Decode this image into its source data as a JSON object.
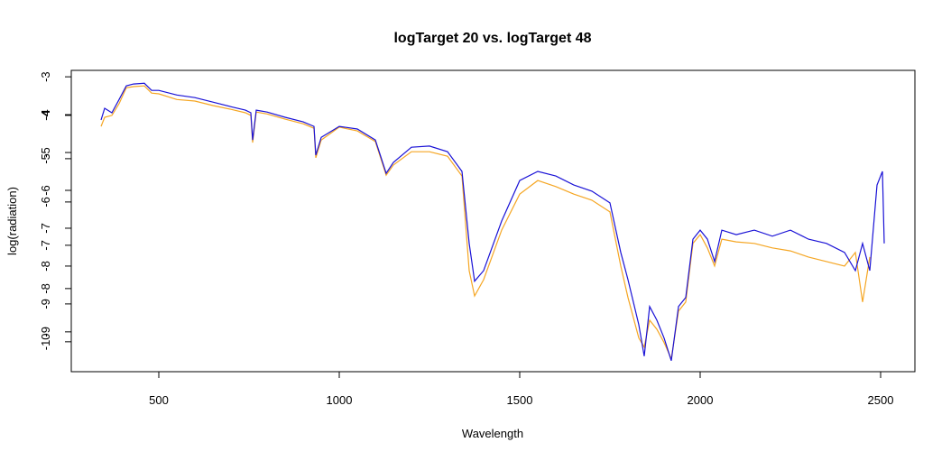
{
  "chart_data": {
    "type": "line",
    "title": "logTarget 20 vs. logTarget 48",
    "x_label": "Wavelength",
    "y_label": "log(radiation)",
    "xlim": [
      257.5,
      2595
    ],
    "xticks": [
      500,
      1000,
      1500,
      2000,
      2500
    ],
    "ylim": [
      -10.79,
      -2.83
    ],
    "yticks": [
      -3,
      -4,
      -5,
      -6,
      -7,
      -8,
      -9,
      -10
    ],
    "y2lim": [
      -9.92,
      -2.96
    ],
    "y2ticks": [
      -4,
      -5,
      -6,
      -7,
      -8,
      -9
    ],
    "series": [
      {
        "color": "#f5a623",
        "x": [
          340,
          350,
          370,
          390,
          410,
          430,
          460,
          480,
          500,
          550,
          600,
          650,
          700,
          740,
          755,
          760,
          770,
          800,
          850,
          900,
          930,
          935,
          950,
          1000,
          1050,
          1100,
          1130,
          1150,
          1200,
          1250,
          1300,
          1340,
          1360,
          1375,
          1400,
          1450,
          1500,
          1550,
          1600,
          1650,
          1700,
          1750,
          1780,
          1800,
          1830,
          1845,
          1860,
          1880,
          1900,
          1920,
          1940,
          1960,
          1980,
          2000,
          2020,
          2040,
          2060,
          2100,
          2150,
          2200,
          2250,
          2300,
          2350,
          2400,
          2430,
          2450,
          2470
        ],
        "values": [
          -4.31,
          -4.07,
          -4.02,
          -3.71,
          -3.29,
          -3.26,
          -3.24,
          -3.43,
          -3.45,
          -3.6,
          -3.64,
          -3.76,
          -3.86,
          -3.95,
          -4.02,
          -4.74,
          -3.93,
          -3.98,
          -4.12,
          -4.24,
          -4.36,
          -5.14,
          -4.67,
          -4.33,
          -4.43,
          -4.71,
          -5.6,
          -5.33,
          -4.98,
          -4.98,
          -5.1,
          -5.62,
          -8.12,
          -8.79,
          -8.36,
          -7.05,
          -6.1,
          -5.74,
          -5.9,
          -6.1,
          -6.26,
          -6.57,
          -8.0,
          -8.83,
          -9.9,
          -10.14,
          -9.43,
          -9.67,
          -10.02,
          -10.45,
          -9.19,
          -8.95,
          -7.4,
          -7.17,
          -7.52,
          -8.0,
          -7.29,
          -7.36,
          -7.4,
          -7.52,
          -7.6,
          -7.76,
          -7.88,
          -8.0,
          -7.64,
          -8.95,
          -7.76
        ]
      },
      {
        "color": "#1a12d6",
        "x": [
          340,
          350,
          370,
          390,
          410,
          430,
          460,
          480,
          500,
          550,
          600,
          650,
          700,
          740,
          755,
          760,
          770,
          800,
          850,
          900,
          930,
          935,
          950,
          1000,
          1050,
          1100,
          1130,
          1150,
          1200,
          1250,
          1300,
          1340,
          1360,
          1375,
          1400,
          1450,
          1500,
          1550,
          1600,
          1650,
          1700,
          1750,
          1780,
          1800,
          1830,
          1845,
          1860,
          1880,
          1900,
          1920,
          1940,
          1960,
          1980,
          2000,
          2020,
          2040,
          2060,
          2100,
          2150,
          2200,
          2250,
          2300,
          2350,
          2400,
          2430,
          2450,
          2470,
          2490,
          2505,
          2510
        ],
        "values": [
          -4.14,
          -3.83,
          -3.95,
          -3.6,
          -3.24,
          -3.19,
          -3.17,
          -3.36,
          -3.36,
          -3.48,
          -3.55,
          -3.67,
          -3.79,
          -3.88,
          -3.95,
          -4.67,
          -3.88,
          -3.93,
          -4.07,
          -4.19,
          -4.31,
          -5.07,
          -4.6,
          -4.31,
          -4.38,
          -4.67,
          -5.55,
          -5.26,
          -4.86,
          -4.83,
          -4.98,
          -5.5,
          -7.4,
          -8.4,
          -8.12,
          -6.81,
          -5.74,
          -5.5,
          -5.62,
          -5.86,
          -6.02,
          -6.33,
          -7.64,
          -8.36,
          -9.55,
          -10.38,
          -9.07,
          -9.43,
          -9.9,
          -10.5,
          -9.07,
          -8.83,
          -7.29,
          -7.05,
          -7.29,
          -7.88,
          -7.05,
          -7.17,
          -7.05,
          -7.21,
          -7.05,
          -7.29,
          -7.4,
          -7.64,
          -8.12,
          -7.4,
          -8.12,
          -5.86,
          -5.5,
          -7.4
        ]
      }
    ]
  }
}
